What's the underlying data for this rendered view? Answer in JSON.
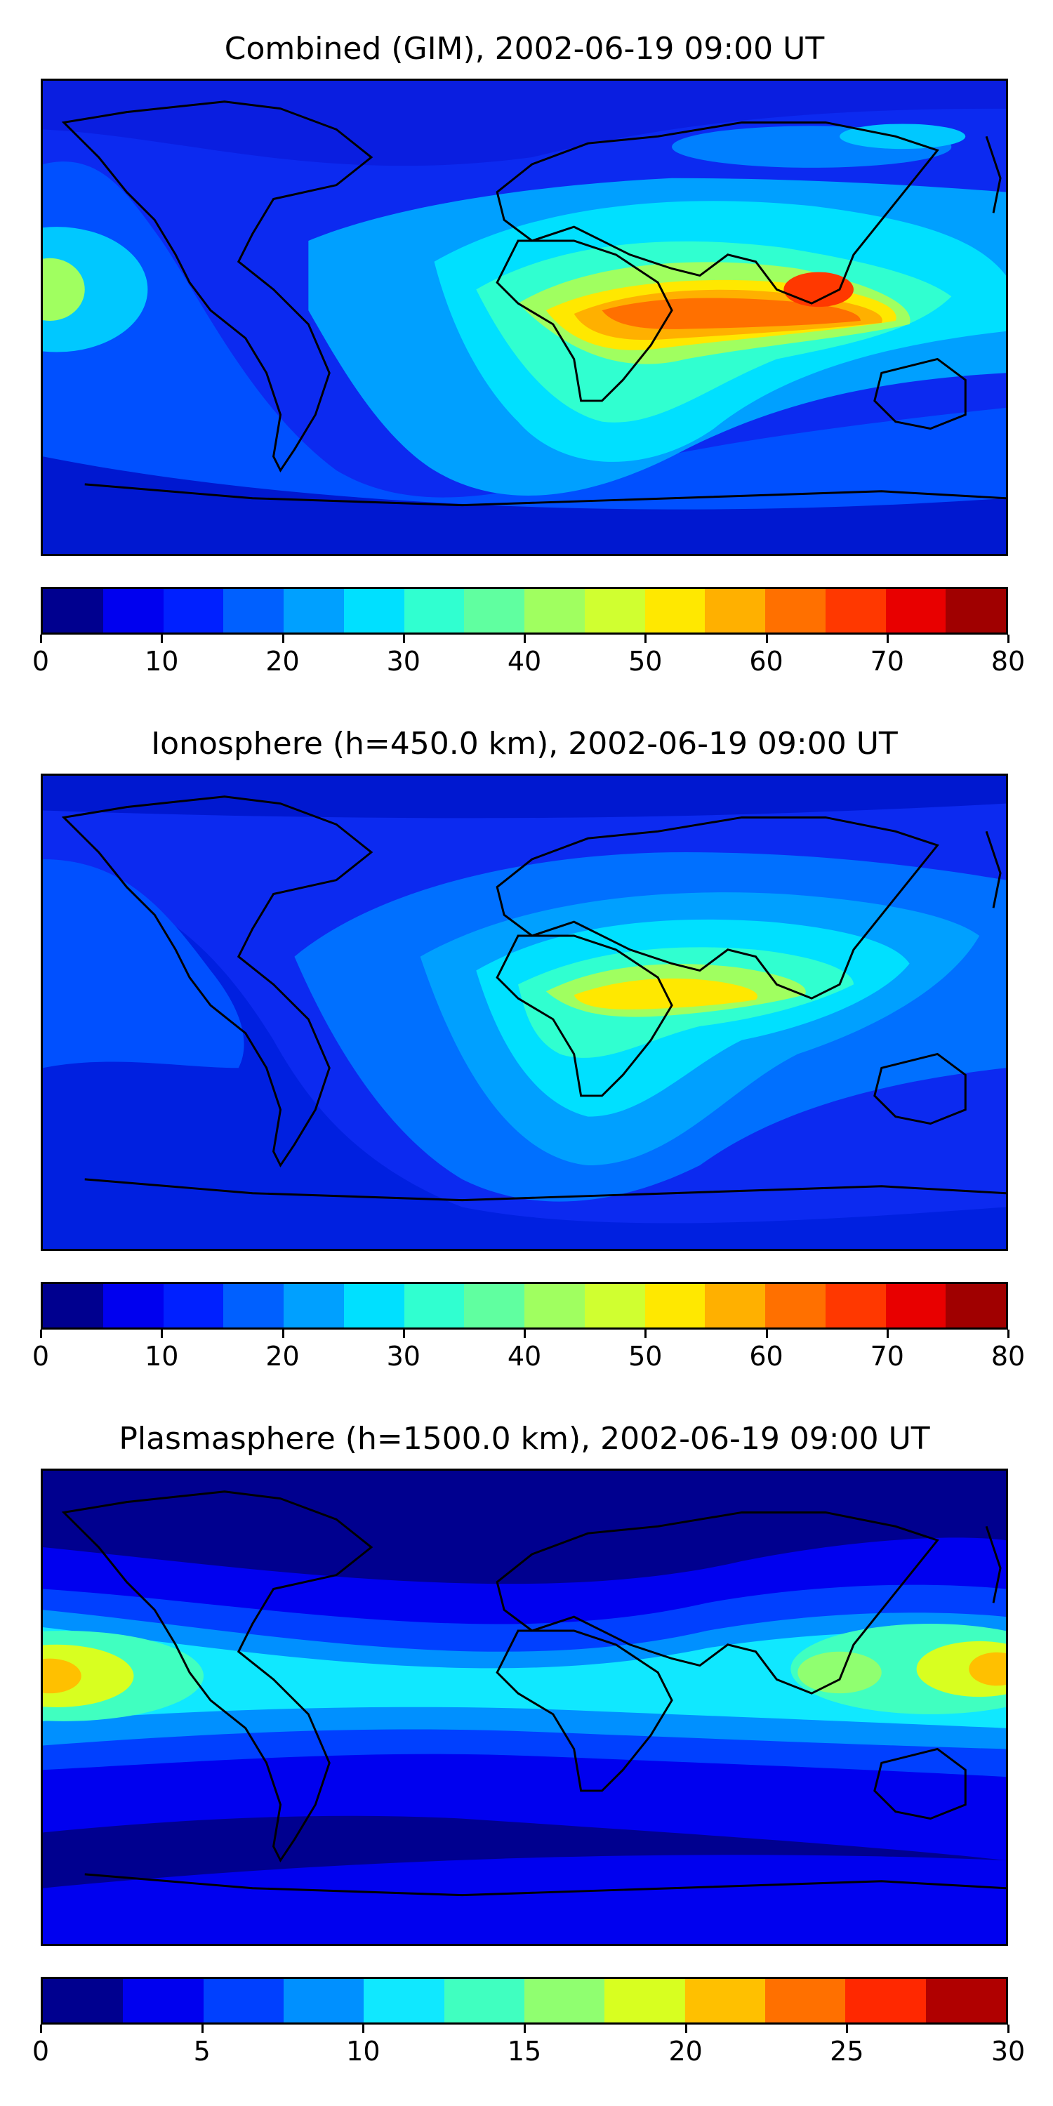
{
  "figure": {
    "panels": [
      {
        "title": "Combined (GIM), 2002-06-19 09:00 UT",
        "colorbar": {
          "min": 0,
          "max": 80,
          "tick_labels": [
            "0",
            "10",
            "20",
            "30",
            "40",
            "50",
            "60",
            "70",
            "80"
          ],
          "colors": [
            "#00008f",
            "#0000ef",
            "#0020ff",
            "#0060ff",
            "#00a0ff",
            "#00e0ff",
            "#30ffd0",
            "#60ffa0",
            "#a0ff60",
            "#d0ff30",
            "#ffe800",
            "#ffb000",
            "#ff7000",
            "#ff3800",
            "#e80000",
            "#a00000"
          ]
        }
      },
      {
        "title": "Ionosphere  (h=450.0 km), 2002-06-19 09:00 UT",
        "colorbar": {
          "min": 0,
          "max": 80,
          "tick_labels": [
            "0",
            "10",
            "20",
            "30",
            "40",
            "50",
            "60",
            "70",
            "80"
          ],
          "colors": [
            "#00008f",
            "#0000ef",
            "#0020ff",
            "#0060ff",
            "#00a0ff",
            "#00e0ff",
            "#30ffd0",
            "#60ffa0",
            "#a0ff60",
            "#d0ff30",
            "#ffe800",
            "#ffb000",
            "#ff7000",
            "#ff3800",
            "#e80000",
            "#a00000"
          ]
        }
      },
      {
        "title": "Plasmasphere (h=1500.0 km), 2002-06-19 09:00 UT",
        "colorbar": {
          "min": 0,
          "max": 30,
          "tick_labels": [
            "0",
            "5",
            "10",
            "15",
            "20",
            "25",
            "30"
          ],
          "colors": [
            "#00008f",
            "#0000ef",
            "#0040ff",
            "#0090ff",
            "#10e8ff",
            "#40ffc0",
            "#90ff70",
            "#d8ff20",
            "#ffc000",
            "#ff7000",
            "#ff2800",
            "#b00000"
          ]
        }
      }
    ]
  }
}
